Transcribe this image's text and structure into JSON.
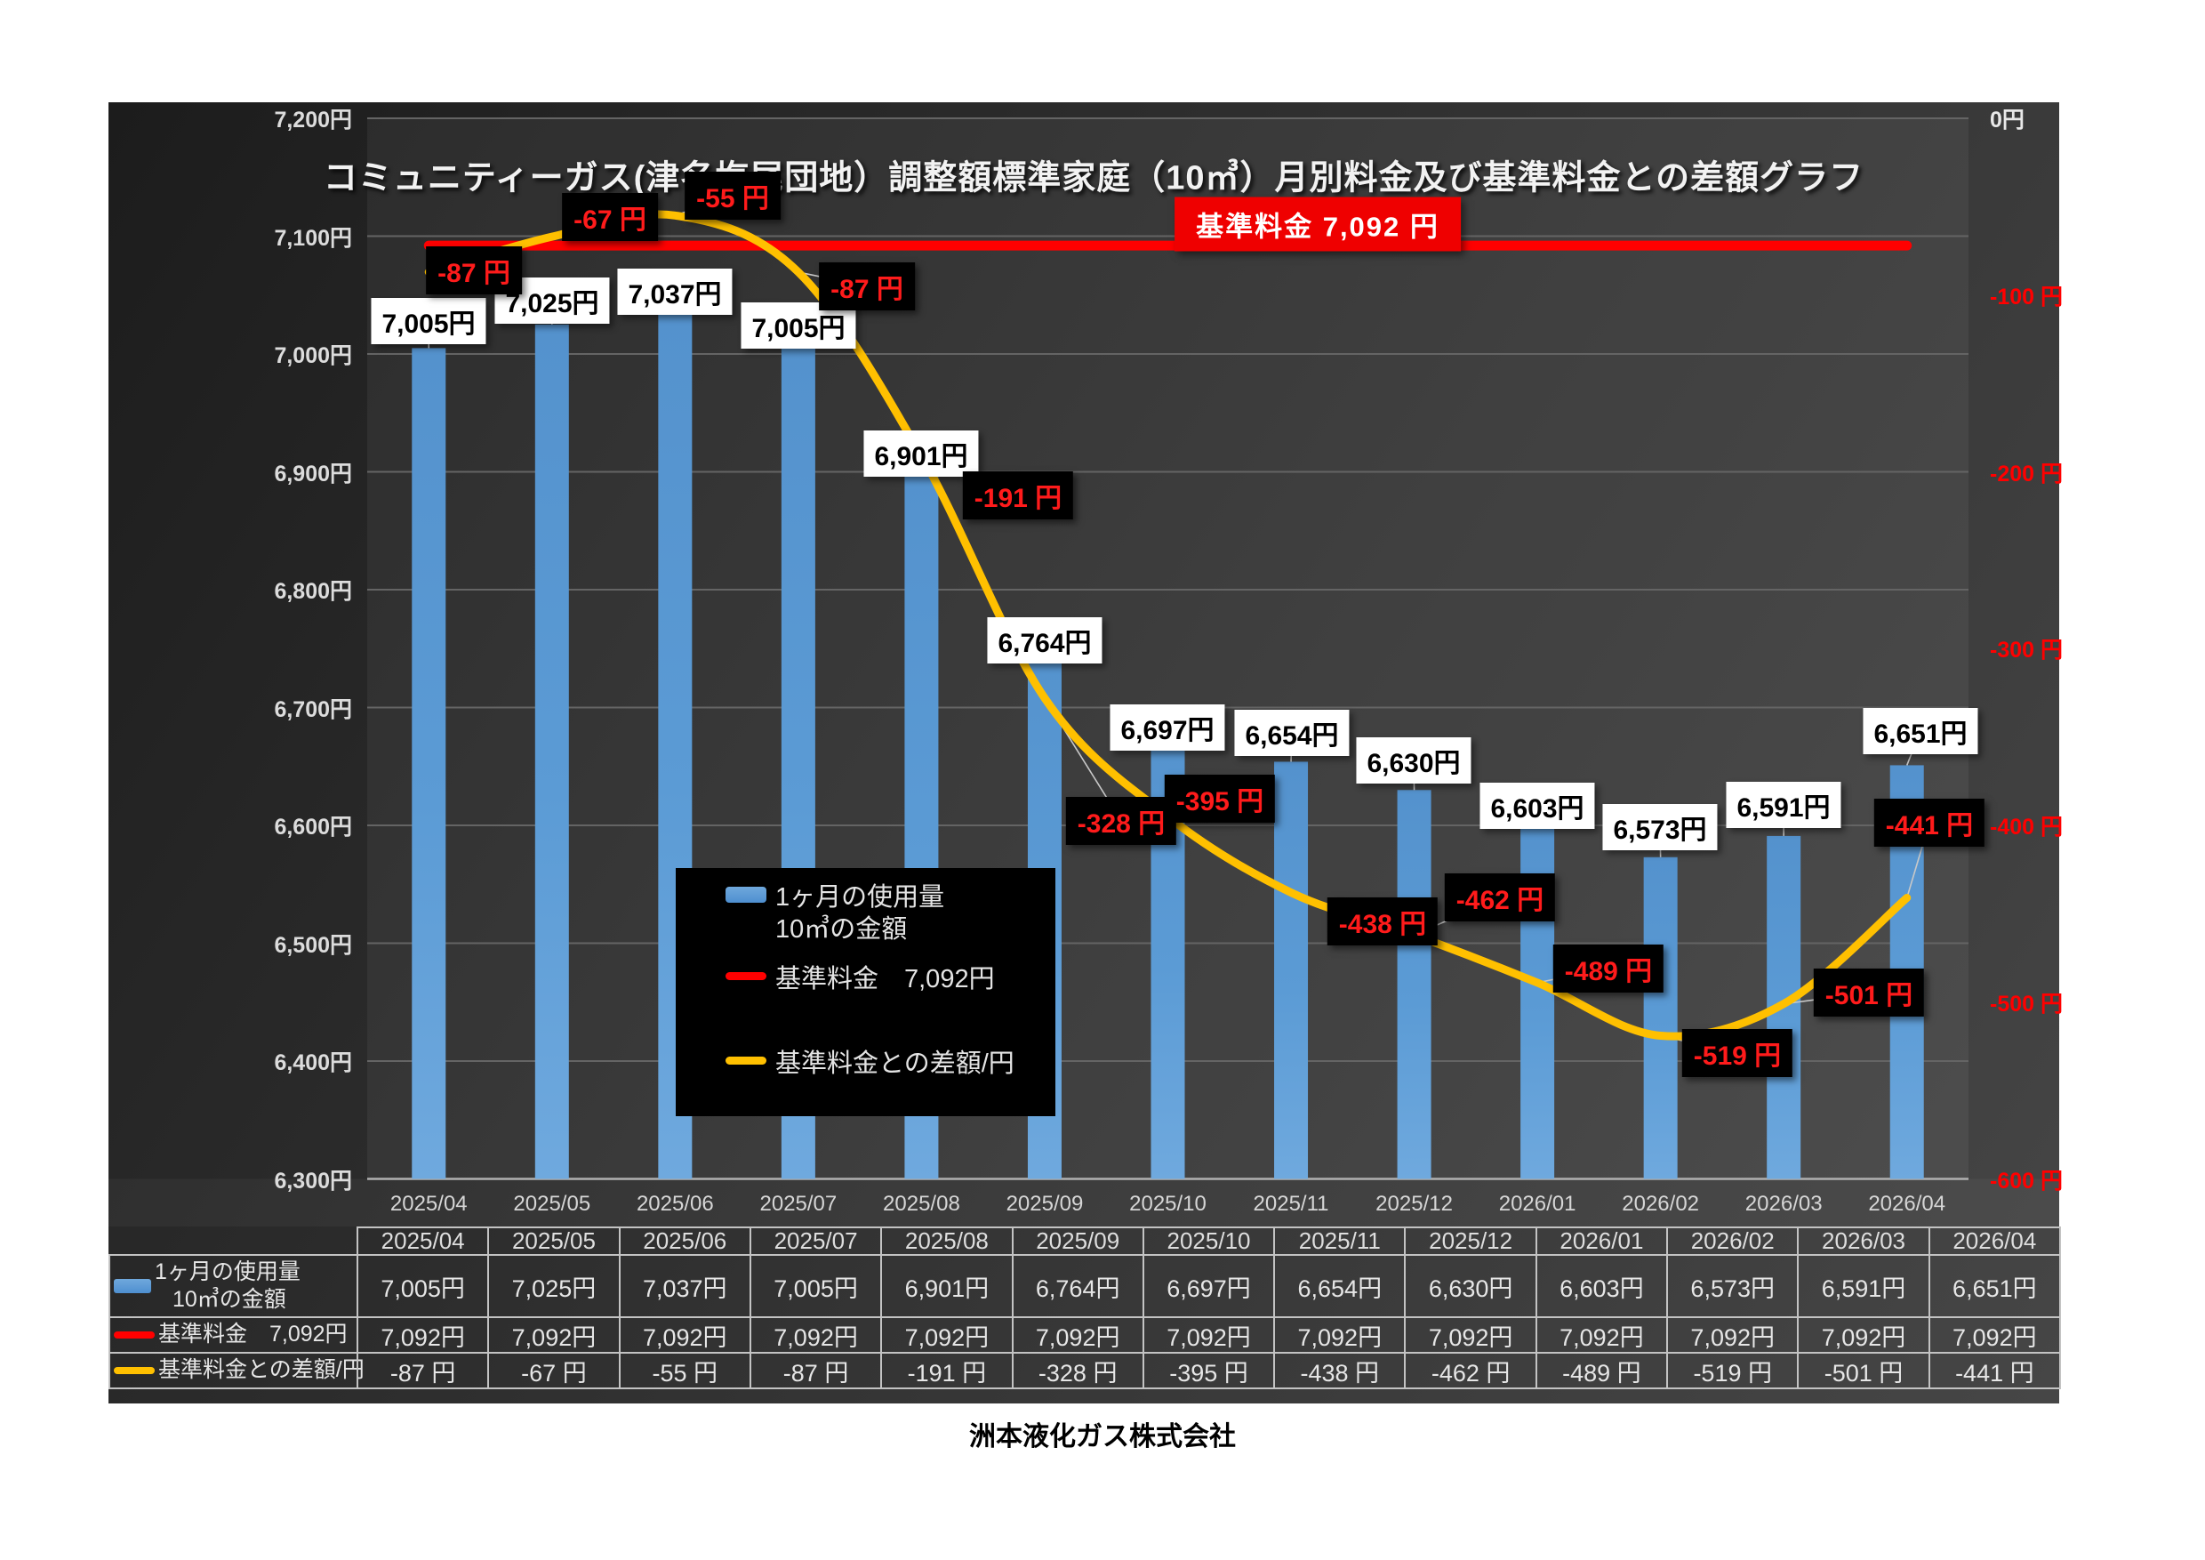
{
  "title": "コミュニティーガス(津名塩尾団地）調整額標準家庭（10㎥）月別料金及び基準料金との差額グラフ",
  "footer": "洲本液化ガス株式会社",
  "banner": {
    "text": "基準料金  7,092  円"
  },
  "legend": {
    "usage_line1": "1ヶ月の使用量",
    "usage_line2": "10㎥の金額",
    "base": "基準料金　7,092円",
    "diff": "基準料金との差額/円"
  },
  "colors": {
    "bar": "#5b9bd5",
    "base_line": "#ff0000",
    "diff_line": "#ffc000",
    "diff_label_text": "#ff1b1b",
    "banner_bg": "#ef0000",
    "axis_text": "#dcdcdc",
    "right_axis_text": "#ff0000"
  },
  "chart_data": {
    "type": "bar+line",
    "title": "コミュニティーガス(津名塩尾団地）調整額標準家庭（10㎥）月別料金及び基準料金との差額グラフ",
    "categories": [
      "2025/04",
      "2025/05",
      "2025/06",
      "2025/07",
      "2025/08",
      "2025/09",
      "2025/10",
      "2025/11",
      "2025/12",
      "2026/01",
      "2026/02",
      "2026/03",
      "2026/04"
    ],
    "series": [
      {
        "name": "1ヶ月の使用量 10㎥の金額",
        "type": "bar",
        "axis": "left",
        "values": [
          7005,
          7025,
          7037,
          7005,
          6901,
          6764,
          6697,
          6654,
          6630,
          6603,
          6573,
          6591,
          6651
        ],
        "labels": [
          "7,005円",
          "7,025円",
          "7,037円",
          "7,005円",
          "6,901円",
          "6,764円",
          "6,697円",
          "6,654円",
          "6,630円",
          "6,603円",
          "6,573円",
          "6,591円",
          "6,651円"
        ]
      },
      {
        "name": "基準料金",
        "type": "line",
        "axis": "left",
        "values": [
          7092,
          7092,
          7092,
          7092,
          7092,
          7092,
          7092,
          7092,
          7092,
          7092,
          7092,
          7092,
          7092
        ],
        "labels": [
          "7,092円",
          "7,092円",
          "7,092円",
          "7,092円",
          "7,092円",
          "7,092円",
          "7,092円",
          "7,092円",
          "7,092円",
          "7,092円",
          "7,092円",
          "7,092円",
          "7,092円"
        ]
      },
      {
        "name": "基準料金との差額/円",
        "type": "line",
        "axis": "right",
        "values": [
          -87,
          -67,
          -55,
          -87,
          -191,
          -328,
          -395,
          -438,
          -462,
          -489,
          -519,
          -501,
          -441
        ],
        "labels": [
          "-87 円",
          "-67 円",
          "-55 円",
          "-87 円",
          "-191 円",
          "-328 円",
          "-395 円",
          "-438 円",
          "-462 円",
          "-489 円",
          "-519 円",
          "-501 円",
          "-441 円"
        ]
      }
    ],
    "left_axis": {
      "min": 6300,
      "max": 7200,
      "step": 100,
      "labels": [
        "7,200円",
        "7,100円",
        "7,000円",
        "6,900円",
        "6,800円",
        "6,700円",
        "6,600円",
        "6,500円",
        "6,400円",
        "6,300円"
      ]
    },
    "right_axis": {
      "min": -600,
      "max": 0,
      "step": 100,
      "labels": [
        "0円",
        "-100 円",
        "-200 円",
        "-300 円",
        "-400 円",
        "-500 円",
        "-600 円"
      ]
    },
    "legend_position": "center",
    "grid": true
  },
  "table": {
    "columns": [
      "2025/04",
      "2025/05",
      "2025/06",
      "2025/07",
      "2025/08",
      "2025/09",
      "2025/10",
      "2025/11",
      "2025/12",
      "2026/01",
      "2026/02",
      "2026/03",
      "2026/04"
    ],
    "rows": [
      {
        "swatch": "bar",
        "label_lines": [
          "1ヶ月の使用量",
          "10㎥の金額"
        ],
        "values": [
          "7,005円",
          "7,025円",
          "7,037円",
          "7,005円",
          "6,901円",
          "6,764円",
          "6,697円",
          "6,654円",
          "6,630円",
          "6,603円",
          "6,573円",
          "6,591円",
          "6,651円"
        ]
      },
      {
        "swatch": "base-line",
        "label_lines": [
          "基準料金　7,092円"
        ],
        "values": [
          "7,092円",
          "7,092円",
          "7,092円",
          "7,092円",
          "7,092円",
          "7,092円",
          "7,092円",
          "7,092円",
          "7,092円",
          "7,092円",
          "7,092円",
          "7,092円",
          "7,092円"
        ]
      },
      {
        "swatch": "diff-line",
        "label_lines": [
          "基準料金との差額/円"
        ],
        "values": [
          "-87 円",
          "-67 円",
          "-55 円",
          "-87 円",
          "-191 円",
          "-328 円",
          "-395 円",
          "-438 円",
          "-462 円",
          "-489 円",
          "-519 円",
          "-501 円",
          "-441 円"
        ]
      }
    ]
  }
}
